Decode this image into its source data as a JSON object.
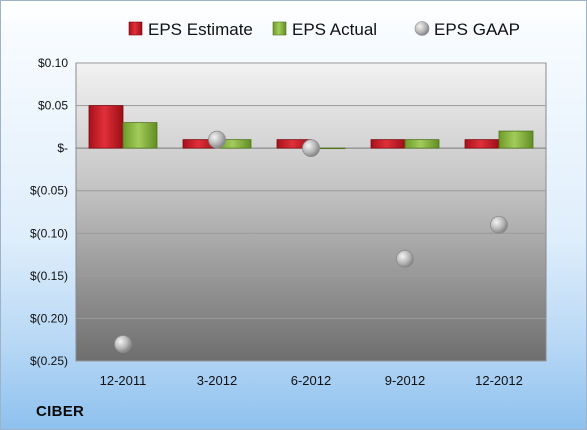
{
  "chart_data": {
    "type": "bar",
    "company": "CIBER",
    "categories": [
      "12-2011",
      "3-2012",
      "6-2012",
      "9-2012",
      "12-2012"
    ],
    "series": [
      {
        "name": "EPS Estimate",
        "kind": "bar",
        "color": "#d2202a",
        "values": [
          0.05,
          0.01,
          0.01,
          0.01,
          0.01
        ]
      },
      {
        "name": "EPS Actual",
        "kind": "bar",
        "color": "#8cba3e",
        "values": [
          0.03,
          0.01,
          0.0,
          0.01,
          0.02
        ]
      },
      {
        "name": "EPS GAAP",
        "kind": "scatter",
        "color": "#c0c0c0",
        "values": [
          -0.23,
          0.01,
          0.0,
          -0.13,
          -0.09
        ]
      }
    ],
    "y_ticks": [
      {
        "value": 0.1,
        "label": "$0.10"
      },
      {
        "value": 0.05,
        "label": "$0.05"
      },
      {
        "value": 0.0,
        "label": "$-"
      },
      {
        "value": -0.05,
        "label": "$(0.05)"
      },
      {
        "value": -0.1,
        "label": "$(0.10)"
      },
      {
        "value": -0.15,
        "label": "$(0.15)"
      },
      {
        "value": -0.2,
        "label": "$(0.20)"
      },
      {
        "value": -0.25,
        "label": "$(0.25)"
      }
    ],
    "ylim": [
      -0.25,
      0.1
    ],
    "legend_position": "top",
    "grid": true
  }
}
